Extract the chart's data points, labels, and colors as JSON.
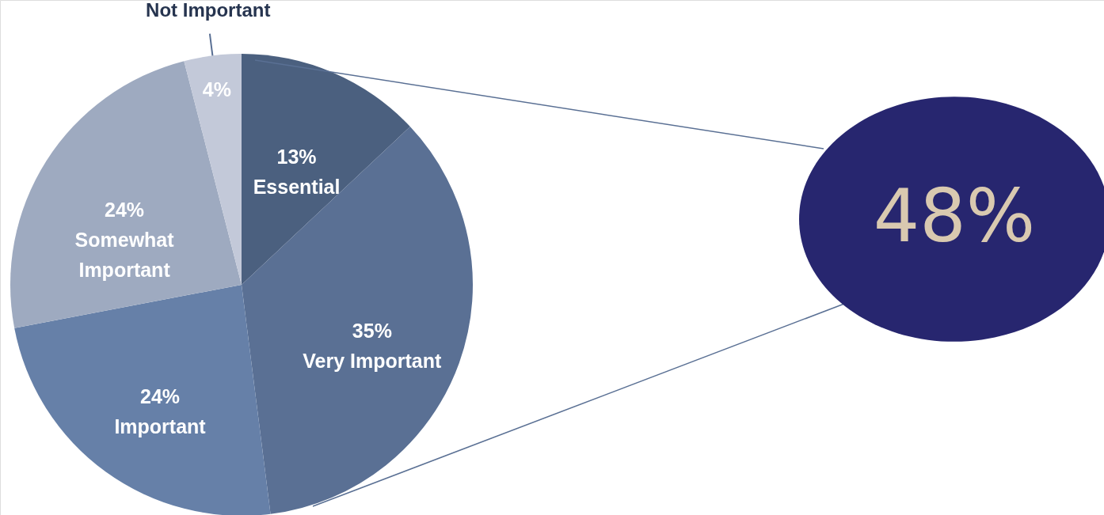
{
  "chart_data": {
    "type": "pie",
    "categories": [
      "Essential",
      "Very Important",
      "Important",
      "Somewhat Important",
      "Not Important"
    ],
    "values": [
      13,
      35,
      24,
      24,
      4
    ],
    "value_labels": [
      "13%",
      "35%",
      "24%",
      "24%",
      "4%"
    ],
    "colors": [
      "#4b607f",
      "#5a7094",
      "#6680a8",
      "#9eaac0",
      "#c3c9d9"
    ],
    "annotations": [
      "48%"
    ]
  }
}
